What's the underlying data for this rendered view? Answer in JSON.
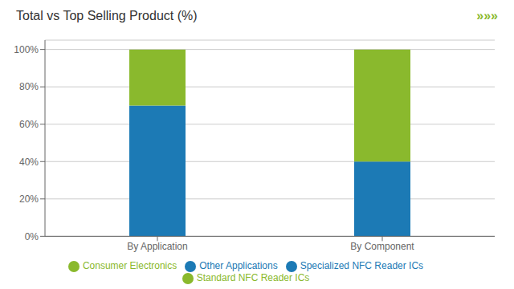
{
  "chart_data": {
    "type": "bar",
    "title": "Total vs Top Selling Product (%)",
    "annotations": [
      "»»»"
    ],
    "categories": [
      "By Application",
      "By Component"
    ],
    "series": [
      {
        "name": "Other Applications",
        "color": "#1c7ab5",
        "values": [
          70,
          null
        ]
      },
      {
        "name": "Consumer Electronics",
        "color": "#8ab92d",
        "values": [
          30,
          null
        ]
      },
      {
        "name": "Specialized NFC Reader ICs",
        "color": "#1c7ab5",
        "values": [
          null,
          40
        ]
      },
      {
        "name": "Standard NFC Reader ICs",
        "color": "#8ab92d",
        "values": [
          null,
          60
        ]
      }
    ],
    "stacked": true,
    "ylim": [
      0,
      105
    ],
    "yticks": [
      {
        "value": 0,
        "label": "0%"
      },
      {
        "value": 20,
        "label": "20%"
      },
      {
        "value": 40,
        "label": "40%"
      },
      {
        "value": 60,
        "label": "60%"
      },
      {
        "value": 80,
        "label": "80%"
      },
      {
        "value": 100,
        "label": "100%"
      }
    ],
    "grid": true,
    "legend": "bottom"
  }
}
